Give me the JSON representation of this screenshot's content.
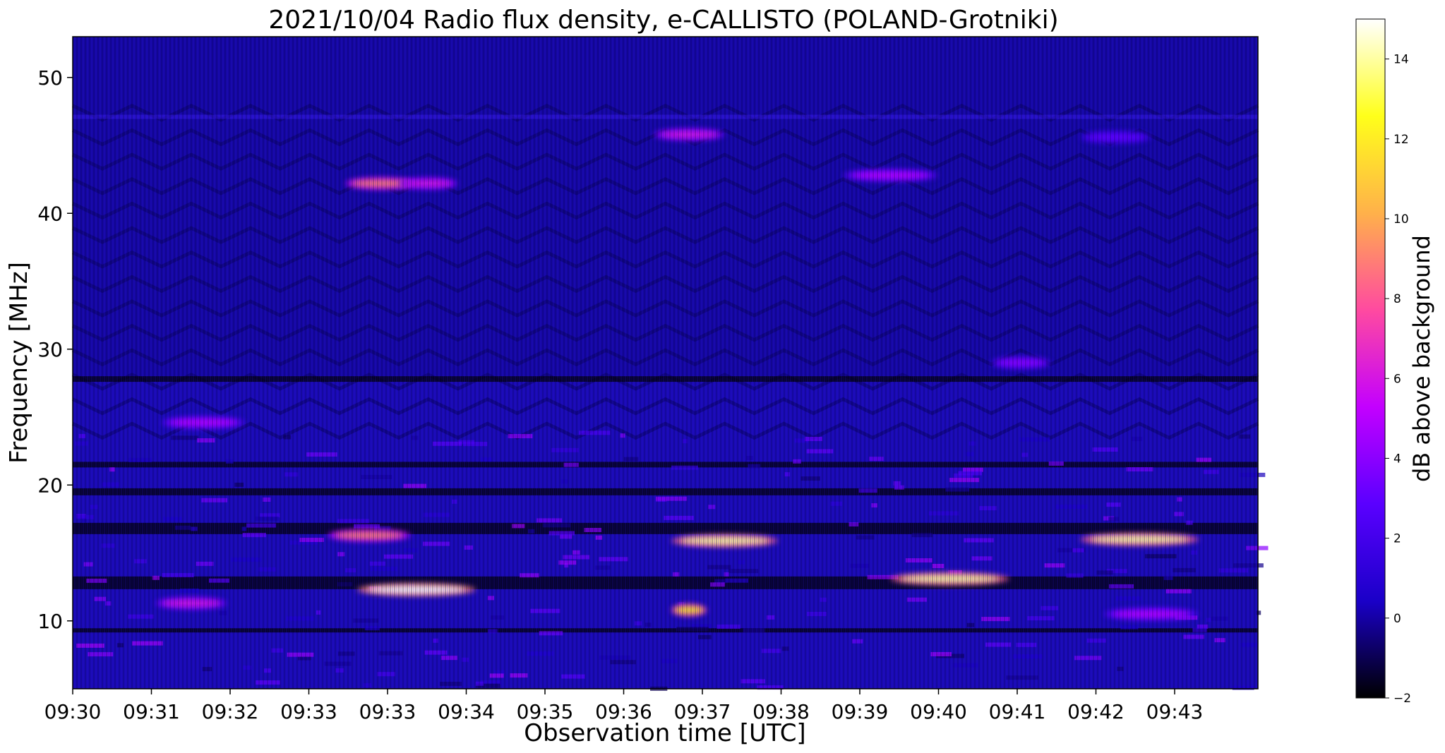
{
  "chart_data": {
    "type": "heatmap",
    "title": "2021/10/04  Radio flux density, e-CALLISTO (POLAND-Grotniki)",
    "xlabel": "Observation time [UTC]",
    "ylabel": "Frequency [MHz]",
    "x_tick_labels": [
      "09:30",
      "09:31",
      "09:32",
      "09:33",
      "09:33",
      "09:34",
      "09:35",
      "09:36",
      "09:37",
      "09:38",
      "09:39",
      "09:40",
      "09:41",
      "09:42",
      "09:43"
    ],
    "y_ticks": [
      10,
      20,
      30,
      40,
      50
    ],
    "ylim": [
      5,
      53
    ],
    "colorbar": {
      "label": "dB above background",
      "range": [
        -2,
        15
      ],
      "ticks": [
        -2,
        0,
        2,
        4,
        6,
        8,
        10,
        12,
        14
      ],
      "colormap": "gnuplot2",
      "colors": [
        "#000000",
        "#1a00c8",
        "#5a00ff",
        "#c300ff",
        "#ff4aa0",
        "#ffb14a",
        "#ffff1a",
        "#ffffff"
      ]
    },
    "bursts": [
      {
        "x_frac": 0.26,
        "freq": 42.2,
        "width_frac": 0.06,
        "value": 9
      },
      {
        "x_frac": 0.3,
        "freq": 42.2,
        "width_frac": 0.05,
        "value": 6
      },
      {
        "x_frac": 0.25,
        "freq": 16.3,
        "width_frac": 0.07,
        "value": 9
      },
      {
        "x_frac": 0.29,
        "freq": 12.3,
        "width_frac": 0.1,
        "value": 15
      },
      {
        "x_frac": 0.1,
        "freq": 11.3,
        "width_frac": 0.06,
        "value": 6
      },
      {
        "x_frac": 0.11,
        "freq": 24.6,
        "width_frac": 0.07,
        "value": 5
      },
      {
        "x_frac": 0.55,
        "freq": 15.9,
        "width_frac": 0.09,
        "value": 14
      },
      {
        "x_frac": 0.52,
        "freq": 10.8,
        "width_frac": 0.03,
        "value": 12
      },
      {
        "x_frac": 0.74,
        "freq": 13.1,
        "width_frac": 0.1,
        "value": 14
      },
      {
        "x_frac": 0.9,
        "freq": 16.0,
        "width_frac": 0.1,
        "value": 14
      },
      {
        "x_frac": 0.52,
        "freq": 45.8,
        "width_frac": 0.06,
        "value": 6
      },
      {
        "x_frac": 0.69,
        "freq": 42.8,
        "width_frac": 0.08,
        "value": 5
      },
      {
        "x_frac": 0.8,
        "freq": 29.0,
        "width_frac": 0.05,
        "value": 4
      },
      {
        "x_frac": 0.91,
        "freq": 10.5,
        "width_frac": 0.08,
        "value": 5
      },
      {
        "x_frac": 0.88,
        "freq": 45.6,
        "width_frac": 0.06,
        "value": 3
      }
    ]
  }
}
